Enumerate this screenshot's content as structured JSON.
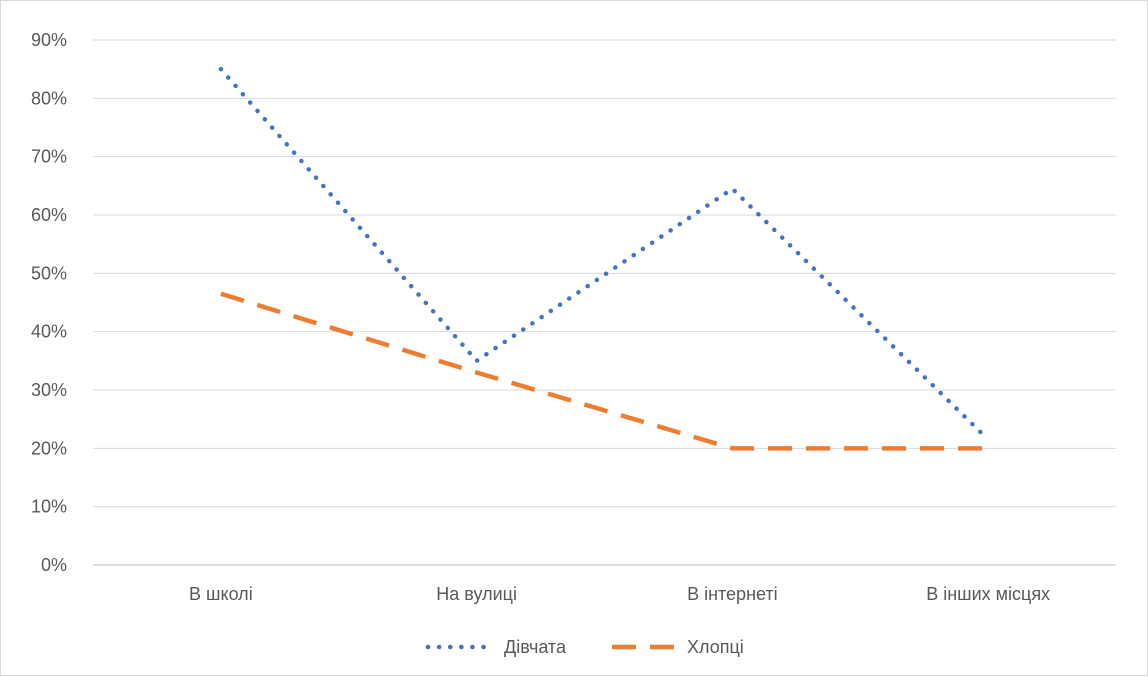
{
  "chart_data": {
    "type": "line",
    "title": "",
    "xlabel": "",
    "ylabel": "",
    "categories": [
      "В школі",
      "На вулиці",
      "В інтернеті",
      "В інших місцях"
    ],
    "series": [
      {
        "name": "Дівчата",
        "values": [
          0.85,
          0.35,
          0.645,
          0.215
        ],
        "color": "#4472C4",
        "style": "dotted"
      },
      {
        "name": "Хлопці",
        "values": [
          0.465,
          0.33,
          0.2,
          0.2
        ],
        "color": "#ED7D31",
        "style": "dashed"
      }
    ],
    "ylim": [
      0,
      0.9
    ],
    "yticks": [
      0,
      0.1,
      0.2,
      0.3,
      0.4,
      0.5,
      0.6,
      0.7,
      0.8,
      0.9
    ],
    "ytick_labels": [
      "0%",
      "10%",
      "20%",
      "30%",
      "40%",
      "50%",
      "60%",
      "70%",
      "80%",
      "90%"
    ],
    "grid": true,
    "legend_position": "bottom",
    "gridline_color": "#d9d9d9",
    "axis_color": "#bfbfbf"
  }
}
